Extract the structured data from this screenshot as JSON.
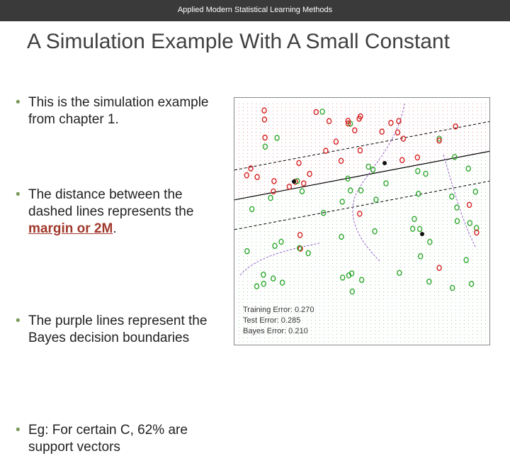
{
  "header": {
    "title": "Applied Modern Statistical Learning Methods"
  },
  "slide": {
    "title": "A Simulation Example With A Small Constant",
    "bullets": {
      "b1": "This is the simulation example from chapter 1.",
      "b2_pre": "The distance between the dashed lines represents the ",
      "b2_hl": "margin or 2M",
      "b2_post": ".",
      "b3": "The purple lines represent the Bayes decision boundaries",
      "b4": "Eg: For certain C, 62% are support vectors"
    }
  },
  "plot": {
    "errors": {
      "training": "Training Error: 0.270",
      "test": "Test Error: 0.285",
      "bayes": "Bayes Error: 0.210"
    },
    "colors": {
      "red_class": "#d62020",
      "green_class": "#2fa82f",
      "bayes": "#9966cc",
      "line": "#000000"
    }
  }
}
